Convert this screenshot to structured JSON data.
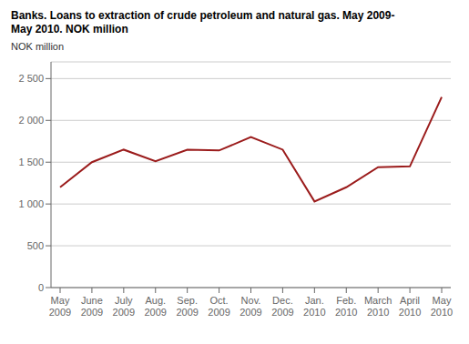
{
  "chart_data": {
    "type": "line",
    "title": "Banks. Loans to extraction of crude petroleum and natural gas. May 2009-\nMay 2010. NOK million",
    "ylabel": "NOK million",
    "categories": [
      "May\n2009",
      "June\n2009",
      "July\n2009",
      "Aug.\n2009",
      "Sep.\n2009",
      "Oct.\n2009",
      "Nov.\n2009",
      "Dec.\n2009",
      "Jan.\n2010",
      "Feb.\n2010",
      "March\n2010",
      "April\n2010",
      "May\n2010"
    ],
    "values": [
      1200,
      1500,
      1650,
      1510,
      1650,
      1640,
      1800,
      1650,
      1030,
      1200,
      1440,
      1450,
      2280
    ],
    "color": "#9b1c1c",
    "ylim": [
      0,
      2700
    ],
    "yticks": [
      0,
      500,
      {
        "value": 1000,
        "label": "1 000"
      },
      {
        "value": 1500,
        "label": "1 500"
      },
      {
        "value": 2000,
        "label": "2 000"
      },
      {
        "value": 2500,
        "label": "2 500"
      }
    ],
    "grid": true
  }
}
